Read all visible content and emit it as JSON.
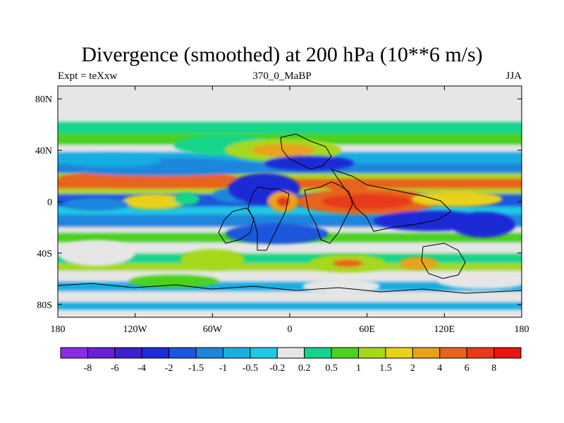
{
  "chart_data": {
    "type": "heatmap",
    "title": "Divergence (smoothed) at 200 hPa (10**6 m/s)",
    "subtitle_left": "Expt = teXxw",
    "subtitle_center": "370_0_MaBP",
    "subtitle_right": "JJA",
    "x_ticks": [
      "180",
      "120W",
      "60W",
      "0",
      "60E",
      "120E",
      "180"
    ],
    "x_tick_values": [
      -180,
      -120,
      -60,
      0,
      60,
      120,
      180
    ],
    "y_ticks": [
      "80N",
      "40N",
      "0",
      "40S",
      "80S"
    ],
    "y_tick_values": [
      80,
      40,
      0,
      -40,
      -80
    ],
    "xlim": [
      -180,
      180
    ],
    "ylim": [
      -90,
      90
    ],
    "colorbar": {
      "labels": [
        "-8",
        "-6",
        "-4",
        "-2",
        "-1.5",
        "-1",
        "-0.5",
        "-0.2",
        "0.2",
        "0.5",
        "1",
        "1.5",
        "2",
        "4",
        "6",
        "8"
      ],
      "colors": [
        "#8b2be2",
        "#6a1fd6",
        "#3f1fcc",
        "#1f2bd6",
        "#1b56dc",
        "#1a86dc",
        "#17aee2",
        "#1ec8e6",
        "#e6e6e6",
        "#13d58a",
        "#4cd21c",
        "#a6d81a",
        "#e8d21a",
        "#e8a21a",
        "#e8641a",
        "#e83a1a",
        "#e61414"
      ]
    },
    "bands": [
      {
        "lat_top": 62,
        "lat_bottom": 53,
        "category": 9
      },
      {
        "lat_top": 53,
        "lat_bottom": 44,
        "category": 10
      },
      {
        "lat_top": 44,
        "lat_bottom": 39,
        "category": 8
      },
      {
        "lat_top": 39,
        "lat_bottom": 30,
        "category": 6
      },
      {
        "lat_top": 30,
        "lat_bottom": 22,
        "category": 5
      },
      {
        "lat_top": 22,
        "lat_bottom": 18,
        "category": 11
      },
      {
        "lat_top": 18,
        "lat_bottom": 10,
        "category": 14
      },
      {
        "lat_top": 10,
        "lat_bottom": 6,
        "category": 11
      },
      {
        "lat_top": 6,
        "lat_bottom": -4,
        "category": 4
      },
      {
        "lat_top": -4,
        "lat_bottom": -10,
        "category": 7
      },
      {
        "lat_top": -10,
        "lat_bottom": -20,
        "category": 5
      },
      {
        "lat_top": -20,
        "lat_bottom": -24,
        "category": 8
      },
      {
        "lat_top": -24,
        "lat_bottom": -32,
        "category": 10
      },
      {
        "lat_top": -32,
        "lat_bottom": -40,
        "category": 8
      },
      {
        "lat_top": -40,
        "lat_bottom": -48,
        "category": 9
      },
      {
        "lat_top": -48,
        "lat_bottom": -54,
        "category": 11
      },
      {
        "lat_top": -54,
        "lat_bottom": -62,
        "category": 8
      },
      {
        "lat_top": -62,
        "lat_bottom": -70,
        "category": 6
      },
      {
        "lat_top": -70,
        "lat_bottom": -78,
        "category": 8
      },
      {
        "lat_top": -78,
        "lat_bottom": -84,
        "category": 6
      }
    ],
    "blobs": [
      {
        "lon": -110,
        "lat": 18,
        "rlon": 70,
        "rlat": 6,
        "category": 14
      },
      {
        "lon": -100,
        "lat": 27,
        "rlon": 80,
        "rlat": 7,
        "category": 5
      },
      {
        "lon": -140,
        "lat": 32,
        "rlon": 40,
        "rlat": 5,
        "category": 6
      },
      {
        "lon": -50,
        "lat": 44,
        "rlon": 40,
        "rlat": 8,
        "category": 9
      },
      {
        "lon": -5,
        "lat": 40,
        "rlon": 45,
        "rlat": 9,
        "category": 11
      },
      {
        "lon": -5,
        "lat": 40,
        "rlon": 25,
        "rlat": 5,
        "category": 13
      },
      {
        "lon": -40,
        "lat": 5,
        "rlon": 20,
        "rlat": 6,
        "category": 5
      },
      {
        "lon": -20,
        "lat": 10,
        "rlon": 28,
        "rlat": 12,
        "category": 3
      },
      {
        "lon": -105,
        "lat": 0,
        "rlon": 25,
        "rlat": 6,
        "category": 12
      },
      {
        "lon": -80,
        "lat": 2,
        "rlon": 10,
        "rlat": 5,
        "category": 9
      },
      {
        "lon": -150,
        "lat": -2,
        "rlon": 25,
        "rlat": 5,
        "category": 5
      },
      {
        "lon": 15,
        "lat": 30,
        "rlon": 35,
        "rlat": 6,
        "category": 3
      },
      {
        "lon": -5,
        "lat": 0,
        "rlon": 12,
        "rlat": 8,
        "category": 13
      },
      {
        "lon": -5,
        "lat": 0,
        "rlon": 5,
        "rlat": 4,
        "category": 15
      },
      {
        "lon": 60,
        "lat": 0,
        "rlon": 55,
        "rlat": 10,
        "category": 14
      },
      {
        "lon": 60,
        "lat": 0,
        "rlon": 35,
        "rlat": 6,
        "category": 15
      },
      {
        "lon": 45,
        "lat": 12,
        "rlon": 15,
        "rlat": 5,
        "category": 14
      },
      {
        "lon": 130,
        "lat": 2,
        "rlon": 35,
        "rlat": 6,
        "category": 12
      },
      {
        "lon": 110,
        "lat": -15,
        "rlon": 45,
        "rlat": 8,
        "category": 3
      },
      {
        "lon": 150,
        "lat": -18,
        "rlon": 25,
        "rlat": 10,
        "category": 3
      },
      {
        "lon": -10,
        "lat": -25,
        "rlon": 40,
        "rlat": 8,
        "category": 4
      },
      {
        "lon": -60,
        "lat": -45,
        "rlon": 25,
        "rlat": 8,
        "category": 11
      },
      {
        "lon": 45,
        "lat": -48,
        "rlon": 30,
        "rlat": 7,
        "category": 11
      },
      {
        "lon": 45,
        "lat": -48,
        "rlon": 12,
        "rlat": 3,
        "category": 14
      },
      {
        "lon": 100,
        "lat": -48,
        "rlon": 15,
        "rlat": 5,
        "category": 13
      },
      {
        "lon": -150,
        "lat": -40,
        "rlon": 30,
        "rlat": 10,
        "category": 8
      },
      {
        "lon": -90,
        "lat": -62,
        "rlon": 35,
        "rlat": 5,
        "category": 10
      },
      {
        "lon": 40,
        "lat": -66,
        "rlon": 30,
        "rlat": 6,
        "category": 8
      },
      {
        "lon": 150,
        "lat": -62,
        "rlon": 35,
        "rlat": 6,
        "category": 8
      }
    ]
  }
}
